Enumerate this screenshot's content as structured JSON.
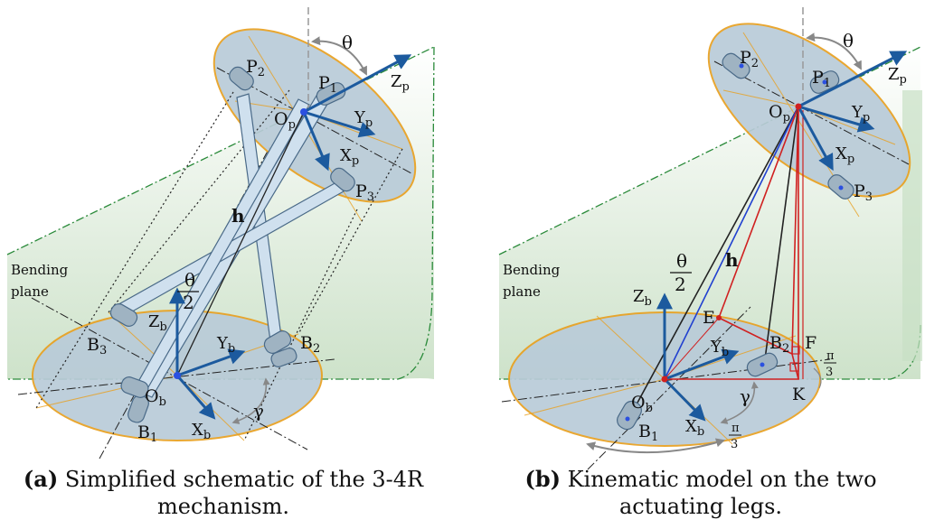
{
  "figure_a": {
    "tag": "(a)",
    "caption": "Simplified schematic of the 3-4R mechanism.",
    "plane_label": [
      "Bending",
      "plane"
    ],
    "theta": "θ",
    "theta_half_num": "θ",
    "theta_half_den": "2",
    "gamma": "γ",
    "h": "h",
    "points": {
      "P1": [
        "P",
        "1"
      ],
      "P2": [
        "P",
        "2"
      ],
      "P3": [
        "P",
        "3"
      ],
      "B1": [
        "B",
        "1"
      ],
      "B2": [
        "B",
        "2"
      ],
      "B3": [
        "B",
        "3"
      ],
      "Op": [
        "O",
        "p"
      ],
      "Ob": [
        "O",
        "b"
      ]
    },
    "axes": {
      "Zp": [
        "Z",
        "p"
      ],
      "Yp": [
        "Y",
        "p"
      ],
      "Xp": [
        "X",
        "p"
      ],
      "Zb": [
        "Z",
        "b"
      ],
      "Yb": [
        "Y",
        "b"
      ],
      "Xb": [
        "X",
        "b"
      ]
    }
  },
  "figure_b": {
    "tag": "(b)",
    "caption": "Kinematic model on the two actuating legs.",
    "plane_label": [
      "Bending",
      "plane"
    ],
    "theta": "θ",
    "theta_half_num": "θ",
    "theta_half_den": "2",
    "gamma": "γ",
    "h": "h",
    "pi3_num": "π",
    "pi3_den": "3",
    "E": "E",
    "F": "F",
    "K": "K",
    "points": {
      "P1": [
        "P",
        "1"
      ],
      "P2": [
        "P",
        "2"
      ],
      "P3": [
        "P",
        "3"
      ],
      "B1": [
        "B",
        "1"
      ],
      "B2": [
        "B",
        "2"
      ],
      "Op": [
        "O",
        "p"
      ],
      "Ob": [
        "O",
        "b"
      ]
    },
    "axes": {
      "Zp": [
        "Z",
        "p"
      ],
      "Yp": [
        "Y",
        "p"
      ],
      "Xp": [
        "X",
        "p"
      ],
      "Zb": [
        "Z",
        "b"
      ],
      "Yb": [
        "Y",
        "b"
      ],
      "Xb": [
        "X",
        "b"
      ]
    }
  },
  "colors": {
    "disc_fill": "#b9cbd8",
    "disc_edge": "#e8a020",
    "axis_arrow": "#1c5a9e",
    "plane_fill": "#d6e8d4",
    "plane_edge": "#2a8a3a",
    "red_leg": "#d02020",
    "blue_leg": "#2040d0"
  }
}
